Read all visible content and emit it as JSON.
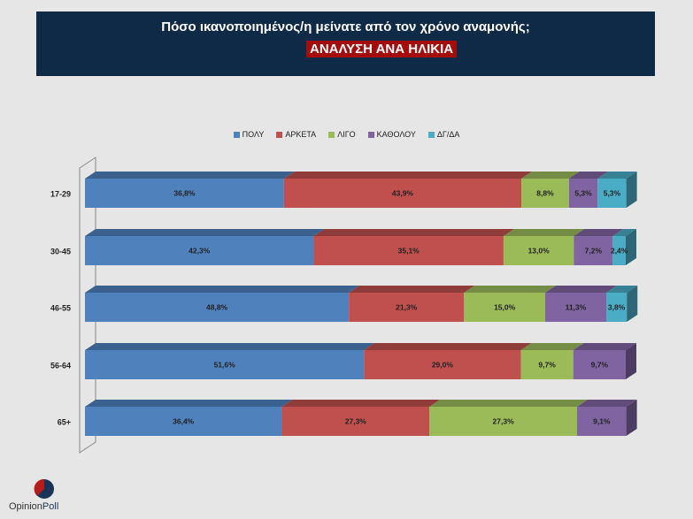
{
  "header": {
    "title": "Πόσο ικανοποιημένος/η μείνατε από τον χρόνο αναμονής;",
    "subtitle": "ΑΝΑΛΥΣΗ ΑΝΑ ΗΛΙΚΙΑ"
  },
  "logo": {
    "opinion": "Opinion",
    "poll": "Poll"
  },
  "colors": {
    "ΠΟΛΥ": "#4f81bd",
    "ΑΡΚΕΤΑ": "#c0504d",
    "ΛΙΓΟ": "#9bbb59",
    "ΚΑΘΟΛΟΥ": "#8064a2",
    "ΔΓ/ΔΑ": "#4bacc6"
  },
  "chart_data": {
    "type": "bar",
    "orientation": "horizontal",
    "stacked": true,
    "categories": [
      "17-29",
      "30-45",
      "46-55",
      "56-64",
      "65+"
    ],
    "series": [
      {
        "name": "ΠΟΛΥ",
        "values": [
          36.8,
          42.3,
          48.8,
          51.6,
          36.4
        ]
      },
      {
        "name": "ΑΡΚΕΤΑ",
        "values": [
          43.9,
          35.1,
          21.3,
          29.0,
          27.3
        ]
      },
      {
        "name": "ΛΙΓΟ",
        "values": [
          8.8,
          13.0,
          15.0,
          9.7,
          27.3
        ]
      },
      {
        "name": "ΚΑΘΟΛΟΥ",
        "values": [
          5.3,
          7.2,
          11.3,
          9.7,
          9.1
        ]
      },
      {
        "name": "ΔΓ/ΔΑ",
        "values": [
          5.3,
          2.4,
          3.8,
          null,
          null
        ]
      }
    ],
    "labels": [
      [
        "36,8%",
        "43,9%",
        "8,8%",
        "5,3%",
        "5,3%"
      ],
      [
        "42,3%",
        "35,1%",
        "13,0%",
        "7,2%",
        "2,4%"
      ],
      [
        "48,8%",
        "21,3%",
        "15,0%",
        "11,3%",
        "3,8%"
      ],
      [
        "51,6%",
        "29,0%",
        "9,7%",
        "9,7%",
        ""
      ],
      [
        "36,4%",
        "27,3%",
        "27,3%",
        "9,1%",
        ""
      ]
    ],
    "legend": [
      "ΠΟΛΥ",
      "ΑΡΚΕΤΑ",
      "ΛΙΓΟ",
      "ΚΑΘΟΛΟΥ",
      "ΔΓ/ΔΑ"
    ],
    "legend_position": "top"
  }
}
